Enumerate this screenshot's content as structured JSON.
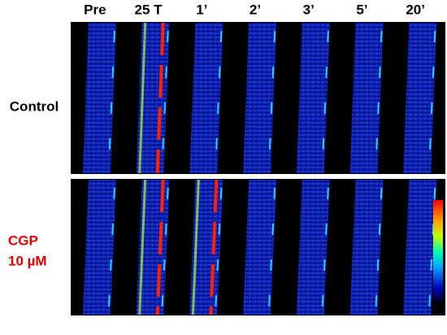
{
  "columns": [
    "Pre",
    "25 T",
    "1’",
    "2’",
    "3’",
    "5’",
    "20’"
  ],
  "rows": [
    [
      "Control"
    ],
    [
      "CGP",
      "10 µM"
    ]
  ]
}
